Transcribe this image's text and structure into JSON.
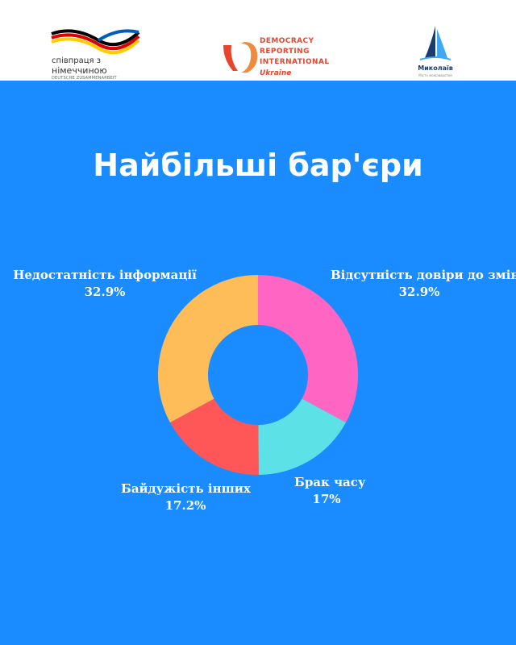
{
  "header": {
    "logos": [
      {
        "name": "german-cooperation",
        "line1": "співпраця з",
        "line2": "німеччиною",
        "line3": "DEUTSCHE ZUSAMMENARBEIT"
      },
      {
        "name": "democracy-reporting-international",
        "lines": [
          "DEMOCRACY",
          "REPORTING",
          "INTERNATIONAL"
        ],
        "sub": "Ukraine"
      },
      {
        "name": "mykolaiv",
        "line1": "Миколаїв",
        "line2": "Місто можливостей"
      }
    ]
  },
  "chart_data": {
    "type": "pie",
    "donut": true,
    "title": "Найбільші бар'єри",
    "slices": [
      {
        "label": "Відсутність довіри до змін",
        "value": 32.9,
        "display": "32.9%",
        "color": "#ff66c4"
      },
      {
        "label": "Брак часу",
        "value": 17,
        "display": "17%",
        "color": "#5ce1e6"
      },
      {
        "label": "Байдужість інших",
        "value": 17.2,
        "display": "17.2%",
        "color": "#ff5757"
      },
      {
        "label": "Недостатність інформації",
        "value": 32.9,
        "display": "32.9%",
        "color": "#ffbd59"
      }
    ]
  },
  "colors": {
    "background": "#1a8cff",
    "header_bg": "#ffffff",
    "dri_accent": "#e8452c"
  }
}
